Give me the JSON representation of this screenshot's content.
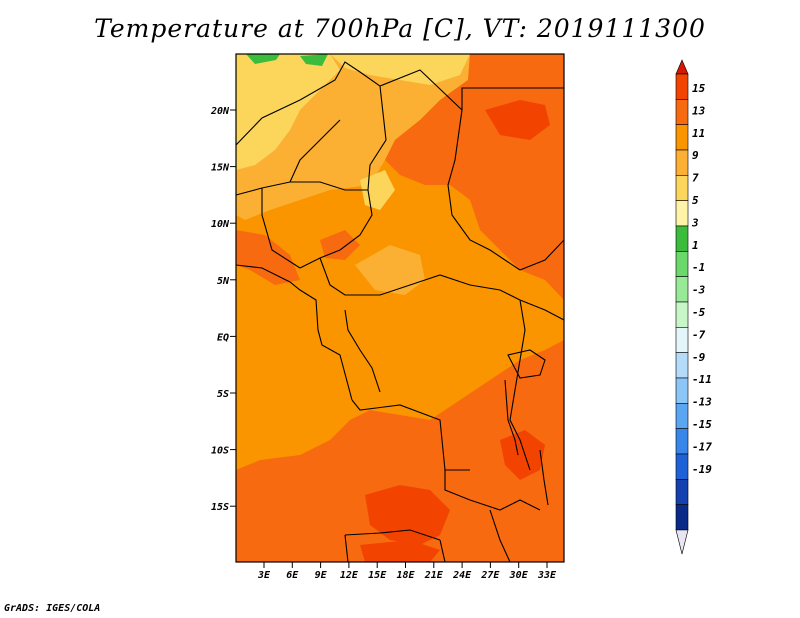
{
  "title": "Temperature at 700hPa [C], VT: 2019111300",
  "credit": "GrADS: IGES/COLA",
  "lat_labels": [
    "20N",
    "15N",
    "10N",
    "5N",
    "EQ",
    "5S",
    "10S",
    "15S"
  ],
  "lon_labels": [
    "3E",
    "6E",
    "9E",
    "12E",
    "15E",
    "18E",
    "21E",
    "24E",
    "27E",
    "30E",
    "33E"
  ],
  "colorbar": {
    "labels": [
      "15",
      "13",
      "11",
      "9",
      "7",
      "5",
      "3",
      "1",
      "-1",
      "-3",
      "-5",
      "-7",
      "-9",
      "-11",
      "-13",
      "-15",
      "-17",
      "-19"
    ],
    "colors": [
      "#d71800",
      "#f24400",
      "#f86a10",
      "#fa9500",
      "#fbb033",
      "#fcd55b",
      "#fff3a8",
      "#3cbc3c",
      "#6ad86a",
      "#98ea98",
      "#c8f6c8",
      "#e4f6fa",
      "#b4dcfa",
      "#8cc6f6",
      "#5aa6f2",
      "#3886ea",
      "#1f62d8",
      "#1440b0",
      "#0a2a8a",
      "#0b0f5e"
    ],
    "low_arrow_color": "#e8e6f4",
    "high_arrow_color": "#d71800"
  },
  "map": {
    "base_color": "#fa9500",
    "fill_colors": {
      "cool": "#fbb033",
      "cooler": "#fcd55b",
      "warm": "#f86a10",
      "hot": "#f24400",
      "green": "#3cbc3c"
    }
  }
}
